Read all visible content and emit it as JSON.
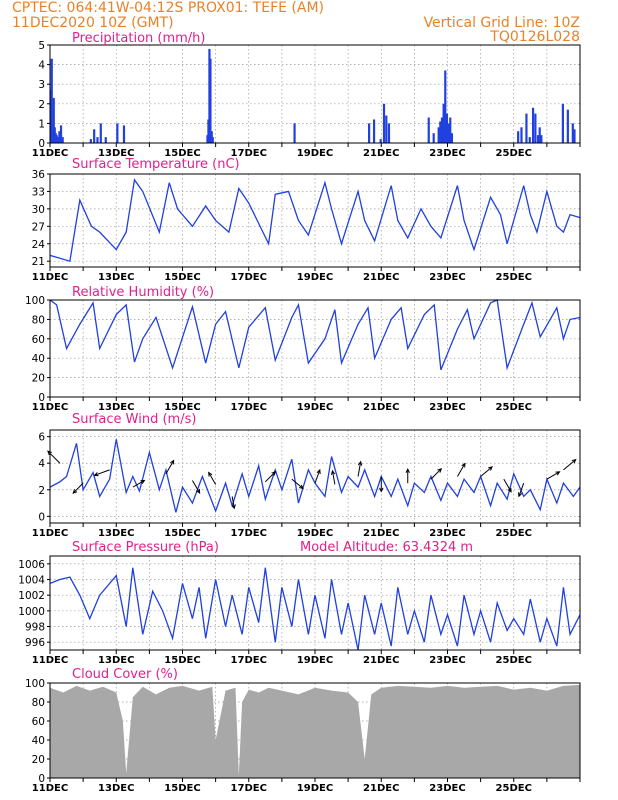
{
  "header": {
    "line1_left": "CPTEC:   064:41W-04:12S   PROX01: TEFE (AM)",
    "line2_left": "11DEC2020  10Z  (GMT)",
    "line2_right": "Vertical Grid Line: 10Z",
    "line3_right": "TQ0126L028"
  },
  "x_labels": [
    "11DEC",
    "13DEC",
    "15DEC",
    "17DEC",
    "19DEC",
    "21DEC",
    "23DEC",
    "25DEC"
  ],
  "chart_data": [
    {
      "type": "bar",
      "title": "Precipitation  (mm/h)",
      "ylim": [
        0,
        5
      ],
      "yticks": [
        "0",
        "1",
        "2",
        "3",
        "4",
        "5"
      ],
      "x_days": [
        0.0,
        0.02,
        0.05,
        0.08,
        0.11,
        0.14,
        0.17,
        0.2,
        0.25,
        0.3,
        0.35,
        1.2,
        1.3,
        1.4,
        1.5,
        1.65,
        2.0,
        2.2,
        4.72,
        4.75,
        4.78,
        4.81,
        4.85,
        4.88,
        7.35,
        9.6,
        9.75,
        9.95,
        10.05,
        10.12,
        10.2,
        11.4,
        11.55,
        11.7,
        11.75,
        11.8,
        11.85,
        11.9,
        11.95,
        12.0,
        12.05,
        12.1,
        14.1,
        14.2,
        14.35,
        14.45,
        14.55,
        14.62,
        14.7,
        14.75,
        14.8,
        15.45,
        15.6,
        15.75,
        15.8
      ],
      "values": [
        2.7,
        4.3,
        1.0,
        2.3,
        0.8,
        0.5,
        0.4,
        0.3,
        0.6,
        0.9,
        0.3,
        0.2,
        0.7,
        0.3,
        1.0,
        0.3,
        1.0,
        0.9,
        0.4,
        1.2,
        4.8,
        4.3,
        0.6,
        0.3,
        1.0,
        1.0,
        1.2,
        0.2,
        2.0,
        1.4,
        1.0,
        1.3,
        0.5,
        0.8,
        1.1,
        1.3,
        2.0,
        3.7,
        1.5,
        1.0,
        1.3,
        0.5,
        0.6,
        0.8,
        1.5,
        0.3,
        1.8,
        1.5,
        0.4,
        0.8,
        0.4,
        2.0,
        1.7,
        1.0,
        0.7
      ]
    },
    {
      "type": "line",
      "title": "Surface Temperature (nC)",
      "ylim": [
        20,
        36
      ],
      "yticks": [
        "21",
        "24",
        "27",
        "30",
        "33",
        "36"
      ],
      "x_days": [
        0,
        0.3,
        0.6,
        0.9,
        1.25,
        1.5,
        2.0,
        2.3,
        2.55,
        2.8,
        3.3,
        3.6,
        3.85,
        4.3,
        4.7,
        5.0,
        5.4,
        5.7,
        6.0,
        6.6,
        6.8,
        7.2,
        7.5,
        7.8,
        8.3,
        8.5,
        8.8,
        9.3,
        9.5,
        9.8,
        10.3,
        10.5,
        10.8,
        11.2,
        11.5,
        11.8,
        12.3,
        12.5,
        12.8,
        13.3,
        13.6,
        13.8,
        14.3,
        14.5,
        14.7,
        15.0,
        15.3,
        15.5,
        15.7,
        16.0
      ],
      "values": [
        22,
        21.5,
        21,
        31.5,
        27,
        26,
        23,
        26,
        35,
        33,
        26,
        34.5,
        30,
        27,
        30.5,
        28,
        26,
        33.5,
        31,
        24,
        32.5,
        33,
        28,
        25.5,
        34.5,
        30,
        24,
        33,
        28,
        24.5,
        34,
        28,
        25,
        30,
        27,
        25,
        34,
        28,
        23,
        32,
        29,
        24,
        34,
        29,
        26,
        33,
        27,
        26,
        29,
        28.5
      ]
    },
    {
      "type": "line",
      "title": "Relative Humidity (%)",
      "ylim": [
        0,
        100
      ],
      "yticks": [
        "0",
        "20",
        "40",
        "60",
        "80",
        "100"
      ],
      "x_days": [
        0,
        0.2,
        0.5,
        0.9,
        1.3,
        1.5,
        2.0,
        2.3,
        2.55,
        2.8,
        3.2,
        3.7,
        4.3,
        4.7,
        5.0,
        5.3,
        5.7,
        6.0,
        6.5,
        6.8,
        7.3,
        7.5,
        7.8,
        8.3,
        8.6,
        8.8,
        9.3,
        9.6,
        9.8,
        10.3,
        10.6,
        10.8,
        11.3,
        11.6,
        11.8,
        12.3,
        12.6,
        12.8,
        13.3,
        13.5,
        13.8,
        14.3,
        14.55,
        14.8,
        15.3,
        15.5,
        15.7,
        16.0
      ],
      "values": [
        100,
        95,
        50,
        75,
        97,
        50,
        85,
        95,
        36,
        60,
        82,
        30,
        93,
        35,
        75,
        88,
        30,
        72,
        92,
        38,
        82,
        95,
        35,
        60,
        90,
        35,
        75,
        92,
        40,
        80,
        92,
        50,
        85,
        95,
        28,
        70,
        90,
        60,
        97,
        100,
        30,
        75,
        97,
        62,
        92,
        60,
        80,
        82
      ]
    },
    {
      "type": "line",
      "title": "Surface Wind (m/s)",
      "ylim": [
        -0.5,
        6.5
      ],
      "yticks": [
        "0",
        "2",
        "4",
        "6"
      ],
      "x_days": [
        0,
        0.3,
        0.5,
        0.8,
        1.0,
        1.3,
        1.5,
        1.8,
        2.0,
        2.3,
        2.5,
        2.7,
        3.0,
        3.3,
        3.5,
        3.8,
        4.0,
        4.3,
        4.6,
        5.0,
        5.3,
        5.5,
        5.8,
        6.0,
        6.3,
        6.5,
        6.8,
        7.0,
        7.3,
        7.5,
        7.8,
        8.0,
        8.3,
        8.5,
        8.8,
        9.0,
        9.3,
        9.5,
        9.8,
        10.0,
        10.3,
        10.5,
        10.8,
        11.0,
        11.3,
        11.5,
        11.8,
        12.0,
        12.3,
        12.5,
        12.8,
        13.0,
        13.3,
        13.5,
        13.8,
        14.0,
        14.3,
        14.5,
        14.8,
        15.0,
        15.3,
        15.5,
        15.8,
        16.0
      ],
      "values": [
        2.2,
        2.6,
        3.0,
        5.5,
        2.0,
        3.3,
        1.5,
        2.8,
        5.8,
        1.8,
        3.0,
        1.9,
        4.8,
        2.0,
        3.5,
        0.3,
        2.2,
        1.0,
        3.0,
        0.4,
        2.5,
        0.8,
        3.2,
        1.5,
        3.8,
        1.3,
        3.5,
        2.0,
        4.3,
        1.0,
        3.5,
        2.5,
        1.5,
        4.5,
        1.8,
        3.0,
        2.2,
        3.5,
        1.5,
        3.0,
        1.5,
        2.8,
        0.8,
        2.5,
        1.8,
        3.0,
        1.2,
        2.5,
        1.5,
        2.8,
        1.8,
        3.0,
        0.8,
        2.5,
        1.3,
        3.2,
        1.5,
        2.0,
        0.5,
        2.8,
        1.0,
        2.5,
        1.5,
        2.2
      ],
      "arrows": {
        "x_days": [
          0.3,
          1.0,
          1.8,
          2.5,
          3.5,
          4.3,
          5.0,
          5.5,
          6.5,
          7.3,
          8.0,
          8.6,
          9.3,
          10.0,
          10.8,
          11.5,
          12.3,
          13.0,
          13.7,
          14.3,
          15.0,
          15.5
        ],
        "speed": [
          4.0,
          2.5,
          3.5,
          2.2,
          3.2,
          2.7,
          2.4,
          1.5,
          2.6,
          2.8,
          2.5,
          2.4,
          3.0,
          3.0,
          2.5,
          2.8,
          3.0,
          3.0,
          2.8,
          2.5,
          2.8,
          3.5
        ],
        "dir_deg": [
          135,
          225,
          200,
          30,
          60,
          300,
          120,
          280,
          45,
          320,
          70,
          100,
          80,
          270,
          90,
          45,
          60,
          40,
          300,
          250,
          30,
          40
        ]
      }
    },
    {
      "type": "line",
      "title": "Surface Pressure (hPa)",
      "subtitle": "Model Altitude: 63.4324 m",
      "ylim": [
        995,
        1007
      ],
      "yticks": [
        "996",
        "998",
        "1000",
        "1002",
        "1004",
        "1006"
      ],
      "x_days": [
        0,
        0.3,
        0.6,
        0.9,
        1.2,
        1.5,
        2.0,
        2.3,
        2.5,
        2.8,
        3.1,
        3.4,
        3.7,
        4.0,
        4.3,
        4.5,
        4.7,
        5.0,
        5.3,
        5.5,
        5.8,
        6.0,
        6.3,
        6.5,
        6.8,
        7.0,
        7.3,
        7.5,
        7.8,
        8.0,
        8.3,
        8.5,
        8.8,
        9.0,
        9.3,
        9.5,
        9.8,
        10.0,
        10.3,
        10.5,
        10.8,
        11.0,
        11.3,
        11.5,
        11.8,
        12.0,
        12.3,
        12.5,
        12.8,
        13.0,
        13.3,
        13.5,
        13.8,
        14.0,
        14.3,
        14.5,
        14.8,
        15.0,
        15.3,
        15.5,
        15.7,
        16.0
      ],
      "values": [
        1003.5,
        1004,
        1004.3,
        1002,
        999,
        1002,
        1004.5,
        998,
        1005.5,
        997,
        1002.5,
        1000,
        996.5,
        1003.5,
        999,
        1003,
        996.5,
        1004,
        998,
        1002,
        997,
        1003,
        998.5,
        1005.5,
        996,
        1003,
        998,
        1004,
        997,
        1002,
        996.5,
        1004,
        997,
        1001,
        995,
        1002,
        997,
        1001,
        995.5,
        1003,
        997,
        1000,
        996,
        1002,
        997,
        999.5,
        995.5,
        1002,
        997,
        1000,
        996,
        1001,
        997.5,
        999,
        997,
        1001.5,
        996,
        999,
        995.5,
        1003,
        997,
        999.5
      ]
    },
    {
      "type": "area",
      "title": "Cloud Cover (%)",
      "ylim": [
        0,
        100
      ],
      "yticks": [
        "0",
        "20",
        "40",
        "60",
        "80",
        "100"
      ],
      "x_days": [
        0,
        0.4,
        0.8,
        1.2,
        1.6,
        2.0,
        2.2,
        2.3,
        2.5,
        2.8,
        3.2,
        3.6,
        4.0,
        4.5,
        4.9,
        5.0,
        5.3,
        5.6,
        5.7,
        5.8,
        6.0,
        6.3,
        6.6,
        7.0,
        7.5,
        8.0,
        8.5,
        9.0,
        9.3,
        9.5,
        9.7,
        10.0,
        10.5,
        11.0,
        11.5,
        12.0,
        12.5,
        13.0,
        13.5,
        14.0,
        14.5,
        15.0,
        15.5,
        16.0
      ],
      "values": [
        95,
        90,
        97,
        92,
        96,
        90,
        60,
        5,
        85,
        96,
        88,
        95,
        97,
        92,
        96,
        40,
        92,
        95,
        3,
        80,
        93,
        90,
        95,
        92,
        88,
        95,
        92,
        90,
        80,
        20,
        88,
        95,
        97,
        96,
        95,
        97,
        95,
        96,
        97,
        93,
        95,
        92,
        97,
        98
      ]
    }
  ]
}
